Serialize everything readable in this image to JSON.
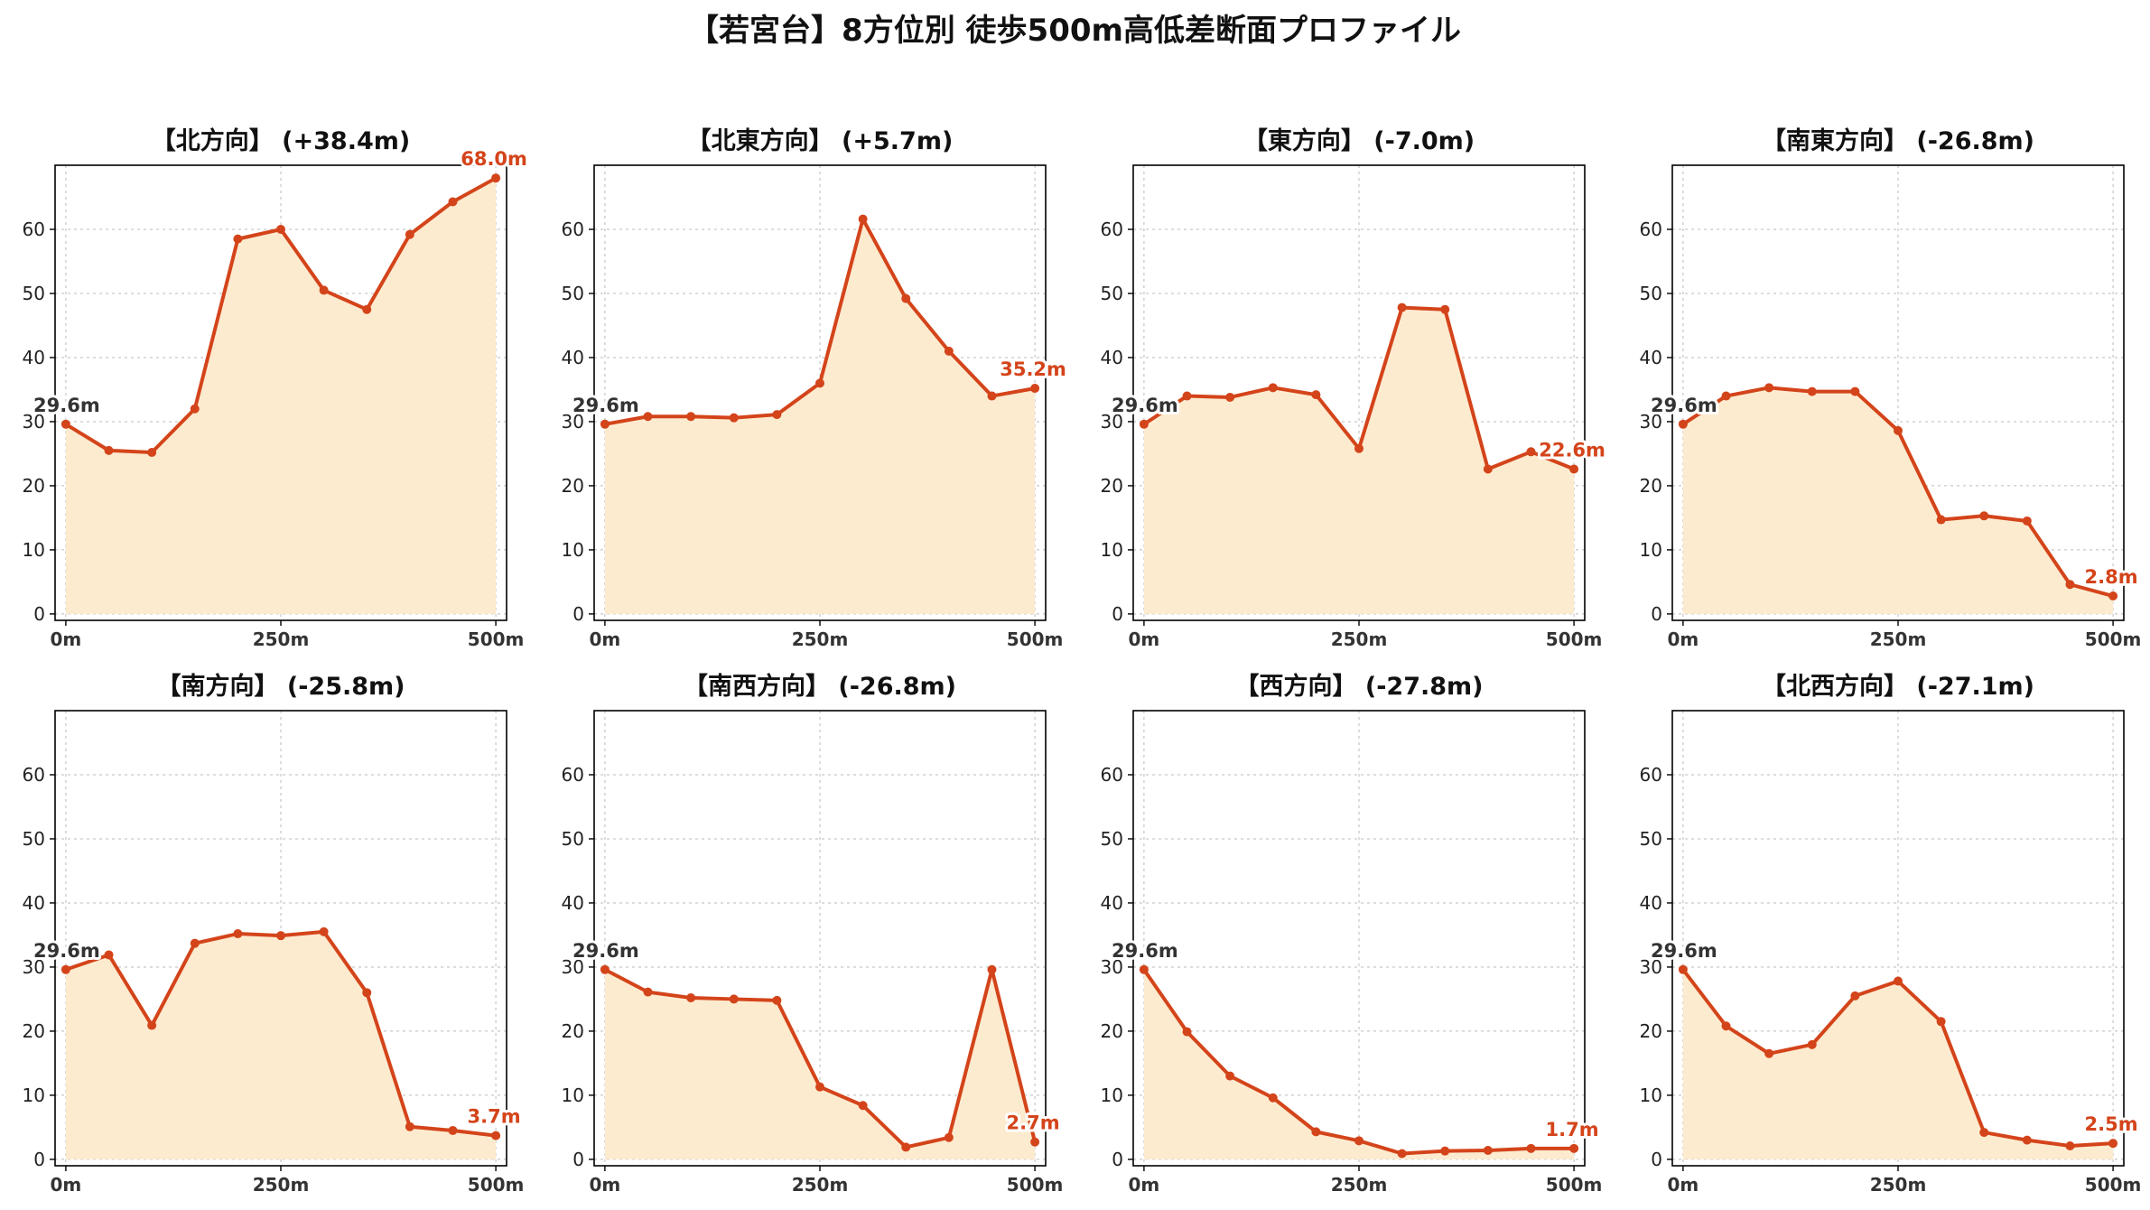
{
  "title": "【若宮台】8方位別 徒歩500m高低差断面プロファイル",
  "colors": {
    "line": "#d4441a",
    "fill": "#fdebd0",
    "grid": "#bbbbbb",
    "start_label": "#333333"
  },
  "chart_data": [
    {
      "type": "area",
      "title": "【北方向】 (+38.4m)",
      "x": [
        0,
        50,
        100,
        150,
        200,
        250,
        300,
        350,
        400,
        450,
        500
      ],
      "values": [
        29.6,
        25.5,
        25.2,
        32.0,
        58.5,
        60.0,
        50.5,
        47.5,
        59.2,
        64.3,
        68.0
      ],
      "start_label": "29.6m",
      "end_label": "68.0m",
      "xticks": [
        "0m",
        "250m",
        "500m"
      ],
      "yticks": [
        "0",
        "10",
        "20",
        "30",
        "40",
        "50",
        "60"
      ],
      "ylim": [
        -1,
        70
      ],
      "grid": true
    },
    {
      "type": "area",
      "title": "【北東方向】 (+5.7m)",
      "x": [
        0,
        50,
        100,
        150,
        200,
        250,
        300,
        350,
        400,
        450,
        500
      ],
      "values": [
        29.6,
        30.8,
        30.8,
        30.6,
        31.1,
        36.0,
        61.6,
        49.2,
        41.0,
        34.0,
        35.2
      ],
      "start_label": "29.6m",
      "end_label": "35.2m",
      "xticks": [
        "0m",
        "250m",
        "500m"
      ],
      "yticks": [
        "0",
        "10",
        "20",
        "30",
        "40",
        "50",
        "60"
      ],
      "ylim": [
        -1,
        70
      ],
      "grid": true
    },
    {
      "type": "area",
      "title": "【東方向】 (-7.0m)",
      "x": [
        0,
        50,
        100,
        150,
        200,
        250,
        300,
        350,
        400,
        450,
        500
      ],
      "values": [
        29.6,
        34.0,
        33.8,
        35.3,
        34.2,
        25.8,
        47.8,
        47.5,
        22.6,
        25.3,
        22.6
      ],
      "start_label": "29.6m",
      "end_label": "22.6m",
      "xticks": [
        "0m",
        "250m",
        "500m"
      ],
      "yticks": [
        "0",
        "10",
        "20",
        "30",
        "40",
        "50",
        "60"
      ],
      "ylim": [
        -1,
        70
      ],
      "grid": true
    },
    {
      "type": "area",
      "title": "【南東方向】 (-26.8m)",
      "x": [
        0,
        50,
        100,
        150,
        200,
        250,
        300,
        350,
        400,
        450,
        500
      ],
      "values": [
        29.6,
        34.0,
        35.3,
        34.7,
        34.7,
        28.6,
        14.7,
        15.3,
        14.5,
        4.6,
        2.8
      ],
      "start_label": "29.6m",
      "end_label": "2.8m",
      "xticks": [
        "0m",
        "250m",
        "500m"
      ],
      "yticks": [
        "0",
        "10",
        "20",
        "30",
        "40",
        "50",
        "60"
      ],
      "ylim": [
        -1,
        70
      ],
      "grid": true
    },
    {
      "type": "area",
      "title": "【南方向】 (-25.8m)",
      "x": [
        0,
        50,
        100,
        150,
        200,
        250,
        300,
        350,
        400,
        450,
        500
      ],
      "values": [
        29.6,
        31.9,
        20.9,
        33.7,
        35.2,
        34.9,
        35.5,
        26.0,
        5.1,
        4.5,
        3.7
      ],
      "start_label": "29.6m",
      "end_label": "3.7m",
      "xticks": [
        "0m",
        "250m",
        "500m"
      ],
      "yticks": [
        "0",
        "10",
        "20",
        "30",
        "40",
        "50",
        "60"
      ],
      "ylim": [
        -1,
        70
      ],
      "grid": true
    },
    {
      "type": "area",
      "title": "【南西方向】 (-26.8m)",
      "x": [
        0,
        50,
        100,
        150,
        200,
        250,
        300,
        350,
        400,
        450,
        500
      ],
      "values": [
        29.6,
        26.1,
        25.2,
        25.0,
        24.8,
        11.3,
        8.4,
        1.9,
        3.4,
        29.6,
        2.7
      ],
      "start_label": "29.6m",
      "end_label": "2.7m",
      "xticks": [
        "0m",
        "250m",
        "500m"
      ],
      "yticks": [
        "0",
        "10",
        "20",
        "30",
        "40",
        "50",
        "60"
      ],
      "ylim": [
        -1,
        70
      ],
      "grid": true
    },
    {
      "type": "area",
      "title": "【西方向】 (-27.8m)",
      "x": [
        0,
        50,
        100,
        150,
        200,
        250,
        300,
        350,
        400,
        450,
        500
      ],
      "values": [
        29.6,
        19.9,
        13.0,
        9.6,
        4.3,
        2.9,
        0.9,
        1.3,
        1.4,
        1.7,
        1.7
      ],
      "start_label": "29.6m",
      "end_label": "1.7m",
      "xticks": [
        "0m",
        "250m",
        "500m"
      ],
      "yticks": [
        "0",
        "10",
        "20",
        "30",
        "40",
        "50",
        "60"
      ],
      "ylim": [
        -1,
        70
      ],
      "grid": true
    },
    {
      "type": "area",
      "title": "【北西方向】 (-27.1m)",
      "x": [
        0,
        50,
        100,
        150,
        200,
        250,
        300,
        350,
        400,
        450,
        500
      ],
      "values": [
        29.6,
        20.8,
        16.5,
        17.9,
        25.5,
        27.8,
        21.5,
        4.2,
        3.0,
        2.1,
        2.5
      ],
      "start_label": "29.6m",
      "end_label": "2.5m",
      "xticks": [
        "0m",
        "250m",
        "500m"
      ],
      "yticks": [
        "0",
        "10",
        "20",
        "30",
        "40",
        "50",
        "60"
      ],
      "ylim": [
        -1,
        70
      ],
      "grid": true
    }
  ]
}
